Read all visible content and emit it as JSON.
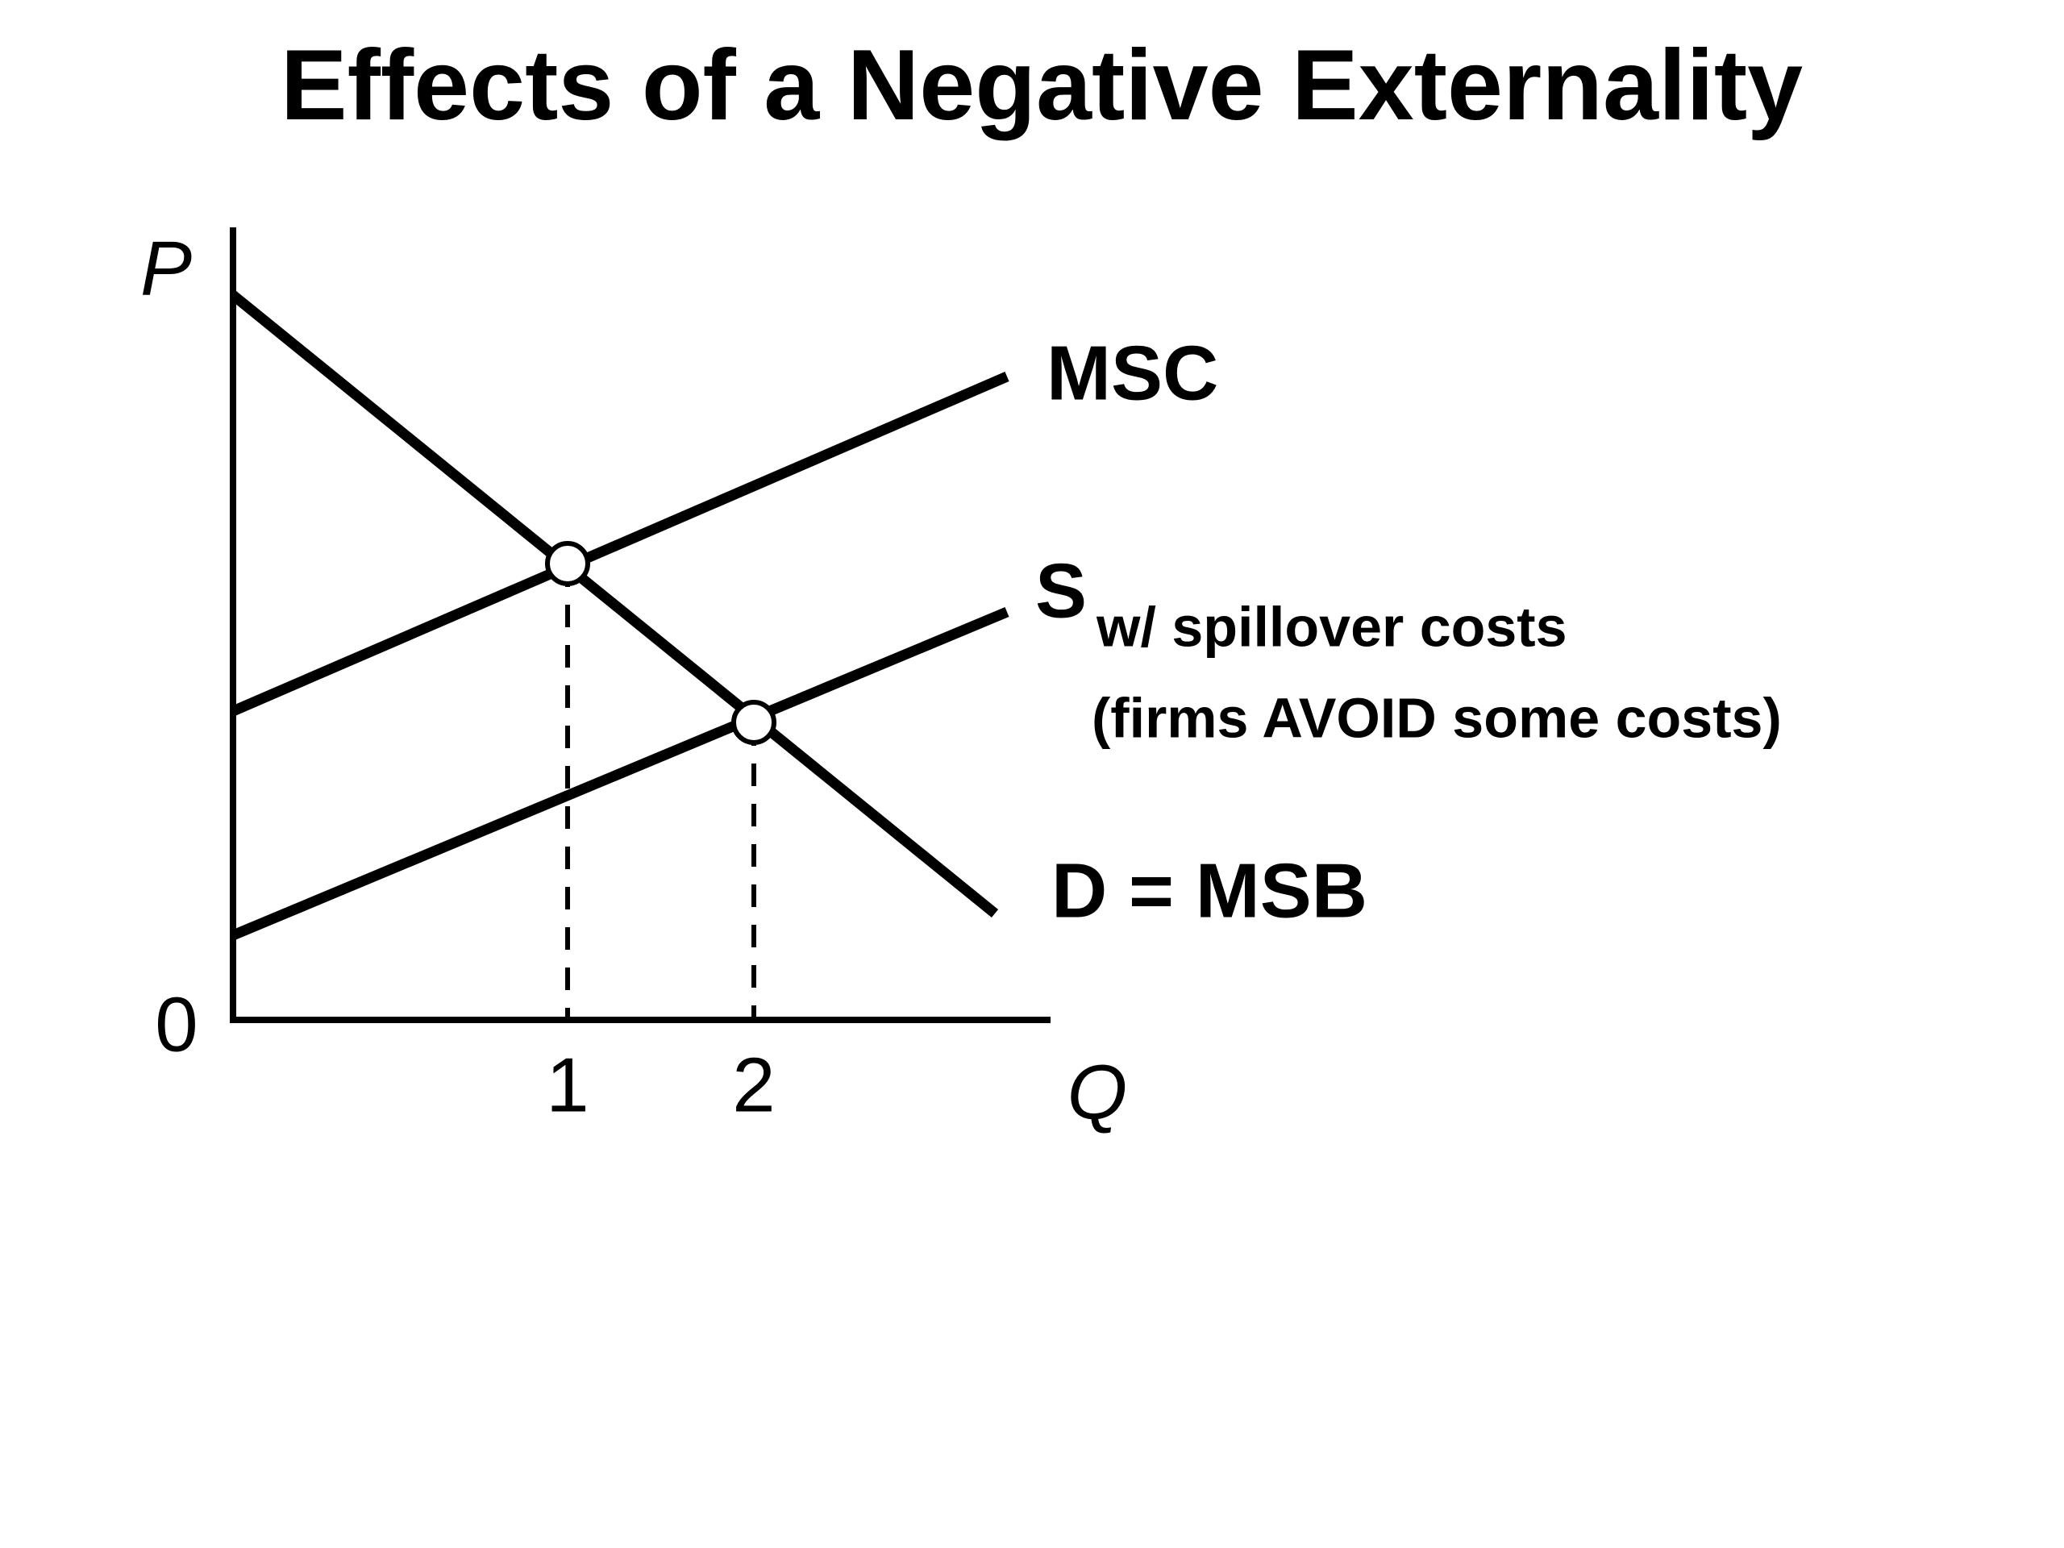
{
  "title": "Effects of a Negative Externality",
  "axes": {
    "y_label": "P",
    "x_label": "Q",
    "origin": "0",
    "x_ticks": [
      "1",
      "2"
    ]
  },
  "curves": {
    "msc": "MSC",
    "supply": {
      "symbol": "S",
      "subscript": "w/ spillover costs",
      "note": "(firms AVOID some costs)"
    },
    "demand": "D = MSB"
  }
}
